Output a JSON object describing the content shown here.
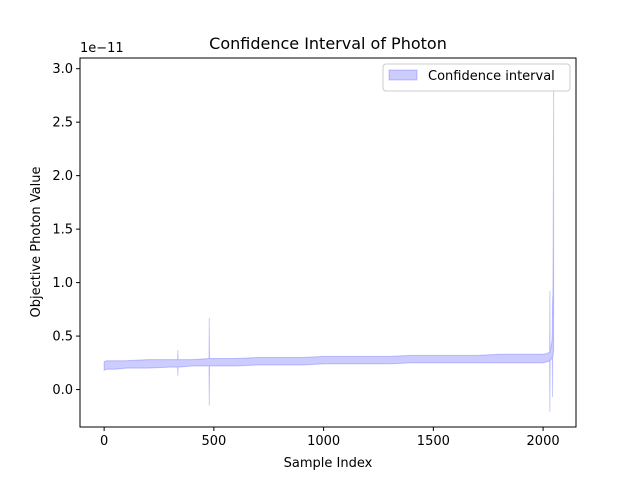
{
  "chart_data": {
    "type": "area",
    "title": "Confidence Interval of Photon",
    "xlabel": "Sample Index",
    "ylabel": "Objective Photon Value",
    "y_offset_label": "1e−11",
    "xlim": [
      -110,
      2150
    ],
    "ylim": [
      -0.35,
      3.1
    ],
    "y_scale_note": "values shown in units of 1e-11",
    "x_ticks": [
      0,
      500,
      1000,
      1500,
      2000
    ],
    "x_tick_labels": [
      "0",
      "500",
      "1000",
      "1500",
      "2000"
    ],
    "y_ticks": [
      0.0,
      0.5,
      1.0,
      1.5,
      2.0,
      2.5,
      3.0
    ],
    "y_tick_labels": [
      "0.0",
      "0.5",
      "1.0",
      "1.5",
      "2.0",
      "2.5",
      "3.0"
    ],
    "grid": false,
    "legend_position": "top-right",
    "fill_color": "#0000ff",
    "fill_alpha": 0.2,
    "series": [
      {
        "name": "Confidence interval",
        "x": [
          0,
          10,
          50,
          100,
          200,
          300,
          335,
          336,
          337,
          340,
          341,
          400,
          478,
          479,
          480,
          481,
          482,
          500,
          600,
          700,
          800,
          900,
          1000,
          1100,
          1200,
          1300,
          1400,
          1500,
          1600,
          1700,
          1800,
          1900,
          1950,
          2000,
          2020,
          2030,
          2031,
          2032,
          2033,
          2034,
          2035,
          2036,
          2037,
          2038,
          2040,
          2041,
          2042,
          2043,
          2044,
          2045,
          2046,
          2047,
          2048
        ],
        "lower": [
          0.18,
          0.19,
          0.19,
          0.2,
          0.2,
          0.21,
          0.21,
          0.13,
          0.21,
          0.21,
          0.21,
          0.22,
          0.22,
          -0.15,
          0.22,
          0.22,
          0.22,
          0.22,
          0.22,
          0.23,
          0.23,
          0.23,
          0.24,
          0.24,
          0.24,
          0.24,
          0.25,
          0.25,
          0.25,
          0.25,
          0.25,
          0.25,
          0.25,
          0.25,
          0.26,
          0.27,
          -0.21,
          0.27,
          0.28,
          0.28,
          0.28,
          0.28,
          0.29,
          0.29,
          0.3,
          0.3,
          0.3,
          -0.07,
          0.31,
          0.32,
          0.33,
          0.35,
          0.38
        ],
        "upper": [
          0.26,
          0.27,
          0.27,
          0.27,
          0.28,
          0.28,
          0.28,
          0.37,
          0.28,
          0.28,
          0.28,
          0.28,
          0.29,
          0.67,
          0.29,
          0.29,
          0.29,
          0.29,
          0.29,
          0.3,
          0.3,
          0.3,
          0.31,
          0.31,
          0.31,
          0.31,
          0.32,
          0.32,
          0.32,
          0.32,
          0.33,
          0.33,
          0.33,
          0.33,
          0.34,
          0.35,
          0.92,
          0.36,
          0.37,
          0.38,
          0.39,
          0.4,
          0.41,
          0.42,
          0.45,
          0.48,
          0.55,
          0.87,
          0.7,
          1.0,
          1.4,
          2.0,
          2.82
        ]
      }
    ]
  }
}
